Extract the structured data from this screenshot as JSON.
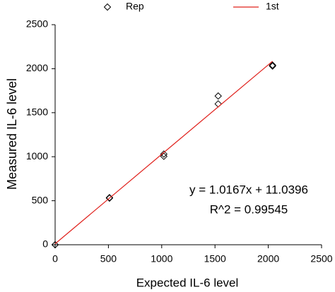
{
  "chart_data": {
    "type": "scatter",
    "x_label": "Expected IL-6 level",
    "y_label": "Measured IL-6 level",
    "annotations": [
      "y = 1.0167x + 11.0396",
      "R^2 = 0.99545"
    ],
    "xlim": [
      0,
      2500
    ],
    "xticks": [
      0,
      500,
      1000,
      1500,
      2000,
      2500
    ],
    "ylim": [
      0,
      2500
    ],
    "yticks": [
      0,
      500,
      1000,
      1500,
      2000,
      2500
    ],
    "grid": false,
    "legend": "top",
    "series": [
      {
        "name": "Rep",
        "color": "#000000",
        "mode": "markers",
        "x": [
          0,
          510,
          510,
          1020,
          1020,
          1530,
          1530,
          2040,
          2040
        ],
        "values": [
          0,
          535,
          530,
          1030,
          1005,
          1690,
          1600,
          2040,
          2030
        ]
      },
      {
        "name": "1st",
        "color": "#e0201b",
        "mode": "line",
        "x": [
          0,
          2040
        ],
        "values": [
          11,
          2085
        ]
      }
    ]
  }
}
